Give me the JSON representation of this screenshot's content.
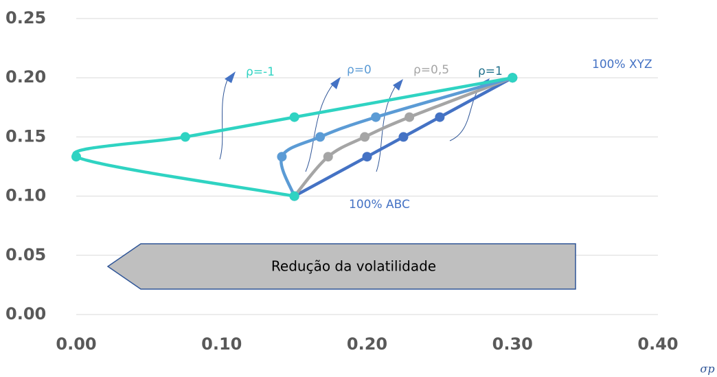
{
  "chart_data": {
    "type": "line",
    "x_label": "σp",
    "series": [
      {
        "name": "ρ=-1",
        "color": "#2fd3c2",
        "x": [
          0.15,
          0,
          0.075,
          0.15,
          0.3
        ],
        "values": [
          0.1,
          0.1333,
          0.15,
          0.1667,
          0.2
        ]
      },
      {
        "name": "ρ=0",
        "color": "#5b9bd5",
        "x": [
          0.15,
          0.1414,
          0.1677,
          0.206,
          0.3
        ],
        "values": [
          0.1,
          0.1333,
          0.15,
          0.1667,
          0.2
        ]
      },
      {
        "name": "ρ=0,5",
        "color": "#a5a5a5",
        "x": [
          0.15,
          0.1732,
          0.1984,
          0.2291,
          0.3
        ],
        "values": [
          0.1,
          0.1333,
          0.15,
          0.1667,
          0.2
        ]
      },
      {
        "name": "ρ=1",
        "color": "#4472c4",
        "x": [
          0.15,
          0.2,
          0.225,
          0.25,
          0.3
        ],
        "values": [
          0.1,
          0.1333,
          0.15,
          0.1667,
          0.2
        ]
      }
    ],
    "annotations": [
      "100% XYZ",
      "100% ABC",
      "Redução da volatilidade"
    ],
    "xlim": [
      0,
      0.4
    ],
    "xticks": [
      {
        "value": 0,
        "label": "0.00"
      },
      {
        "value": 0.1,
        "label": "0.10"
      },
      {
        "value": 0.2,
        "label": "0.20"
      },
      {
        "value": 0.3,
        "label": "0.30"
      },
      {
        "value": 0.4,
        "label": "0.40"
      }
    ],
    "ylim": [
      0,
      0.25
    ],
    "yticks": [
      {
        "value": 0,
        "label": "0.00"
      },
      {
        "value": 0.05,
        "label": "0.05"
      },
      {
        "value": 0.1,
        "label": "0.10"
      },
      {
        "value": 0.15,
        "label": "0.15"
      },
      {
        "value": 0.2,
        "label": "0.20"
      },
      {
        "value": 0.25,
        "label": "0.25"
      }
    ],
    "grid": true
  }
}
